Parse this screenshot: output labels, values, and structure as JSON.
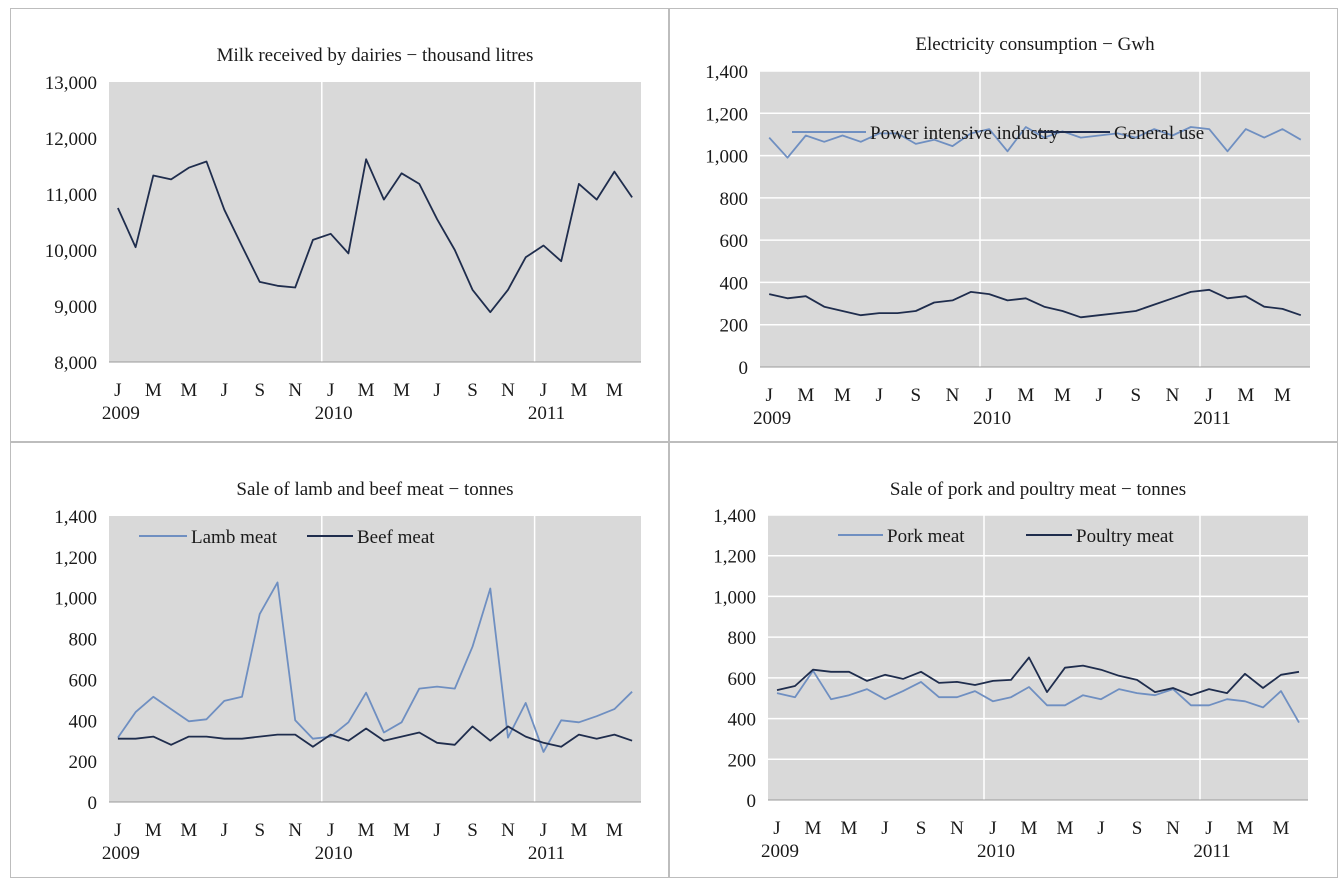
{
  "chart_data": [
    {
      "type": "line",
      "title": "Milk received  by dairies − thousand litres",
      "ylim": [
        8000,
        13000
      ],
      "yticks": [
        "8,000",
        "9,000",
        "10,000",
        "11,000",
        "12,000",
        "13,000"
      ],
      "month_labels": [
        "J",
        "M",
        "M",
        "J",
        "S",
        "N",
        "J",
        "M",
        "M",
        "J",
        "S",
        "N",
        "J",
        "M",
        "M"
      ],
      "year_labels": [
        "2009",
        "2010",
        "2011"
      ],
      "grid": "vertical lines at year boundaries",
      "legend": "none",
      "series": [
        {
          "color": "#1f2d4d",
          "values": [
            10750,
            10050,
            11330,
            11260,
            11470,
            11580,
            10720,
            10070,
            9430,
            9360,
            9330,
            10180,
            10290,
            9940,
            11620,
            10900,
            11370,
            11180,
            10550,
            10000,
            9290,
            8890,
            9290,
            9870,
            10080,
            9800,
            11180,
            10900,
            11400,
            10940
          ]
        }
      ]
    },
    {
      "type": "line",
      "title": "Electricity  consumption − Gwh",
      "ylim": [
        0,
        1400
      ],
      "yticks": [
        "0",
        "200",
        "400",
        "600",
        "800",
        "1,000",
        "1,200",
        "1,400"
      ],
      "month_labels": [
        "J",
        "M",
        "M",
        "J",
        "S",
        "N",
        "J",
        "M",
        "M",
        "J",
        "S",
        "N",
        "J",
        "M",
        "M"
      ],
      "year_labels": [
        "2009",
        "2010",
        "2011"
      ],
      "grid": "horizontal gridlines and vertical lines at year boundaries",
      "legend": "top",
      "series": [
        {
          "name": "Power intensive industry",
          "color": "#6f8fc1",
          "values": [
            1085,
            990,
            1095,
            1065,
            1095,
            1065,
            1105,
            1105,
            1055,
            1075,
            1045,
            1105,
            1125,
            1020,
            1135,
            1085,
            1115,
            1085,
            1095,
            1105,
            1085,
            1125,
            1095,
            1135,
            1125,
            1020,
            1125,
            1085,
            1125,
            1075
          ]
        },
        {
          "name": "General use",
          "color": "#1f2d4d",
          "values": [
            345,
            325,
            335,
            285,
            265,
            245,
            255,
            255,
            265,
            305,
            315,
            355,
            345,
            315,
            325,
            285,
            265,
            235,
            245,
            255,
            265,
            295,
            325,
            355,
            365,
            325,
            335,
            285,
            275,
            245
          ]
        }
      ]
    },
    {
      "type": "line",
      "title": "Sale of lamb and beef meat − tonnes",
      "ylim": [
        0,
        1400
      ],
      "yticks": [
        "0",
        "200",
        "400",
        "600",
        "800",
        "1,000",
        "1,200",
        "1,400"
      ],
      "month_labels": [
        "J",
        "M",
        "M",
        "J",
        "S",
        "N",
        "J",
        "M",
        "M",
        "J",
        "S",
        "N",
        "J",
        "M",
        "M"
      ],
      "year_labels": [
        "2009",
        "2010",
        "2011"
      ],
      "grid": "vertical lines at year boundaries",
      "legend": "top-left",
      "series": [
        {
          "name": "Lamb meat",
          "color": "#6f8fc1",
          "values": [
            315,
            440,
            515,
            455,
            395,
            405,
            495,
            515,
            920,
            1075,
            400,
            310,
            320,
            390,
            535,
            340,
            390,
            555,
            565,
            555,
            760,
            1045,
            315,
            485,
            245,
            400,
            390,
            420,
            455,
            540
          ]
        },
        {
          "name": "Beef meat",
          "color": "#1f2d4d",
          "values": [
            310,
            310,
            320,
            280,
            320,
            320,
            310,
            310,
            320,
            330,
            330,
            270,
            330,
            300,
            360,
            300,
            320,
            340,
            290,
            280,
            370,
            300,
            370,
            320,
            290,
            270,
            330,
            310,
            330,
            300
          ]
        }
      ]
    },
    {
      "type": "line",
      "title": "Sale of pork and poultry meat − tonnes",
      "ylim": [
        0,
        1400
      ],
      "yticks": [
        "0",
        "200",
        "400",
        "600",
        "800",
        "1,000",
        "1,200",
        "1,400"
      ],
      "month_labels": [
        "J",
        "M",
        "M",
        "J",
        "S",
        "N",
        "J",
        "M",
        "M",
        "J",
        "S",
        "N",
        "J",
        "M",
        "M"
      ],
      "year_labels": [
        "2009",
        "2010",
        "2011"
      ],
      "grid": "horizontal gridlines and vertical lines at year boundaries",
      "legend": "top",
      "series": [
        {
          "name": "Pork meat",
          "color": "#6f8fc1",
          "values": [
            525,
            505,
            635,
            495,
            515,
            545,
            495,
            535,
            580,
            505,
            505,
            535,
            485,
            505,
            555,
            465,
            465,
            515,
            495,
            545,
            525,
            515,
            545,
            465,
            465,
            495,
            485,
            455,
            535,
            380
          ]
        },
        {
          "name": "Poultry meat",
          "color": "#1f2d4d",
          "values": [
            540,
            560,
            640,
            630,
            630,
            585,
            615,
            595,
            630,
            575,
            580,
            565,
            585,
            590,
            700,
            530,
            650,
            660,
            640,
            610,
            590,
            530,
            550,
            515,
            545,
            525,
            620,
            550,
            615,
            630
          ]
        }
      ]
    }
  ]
}
